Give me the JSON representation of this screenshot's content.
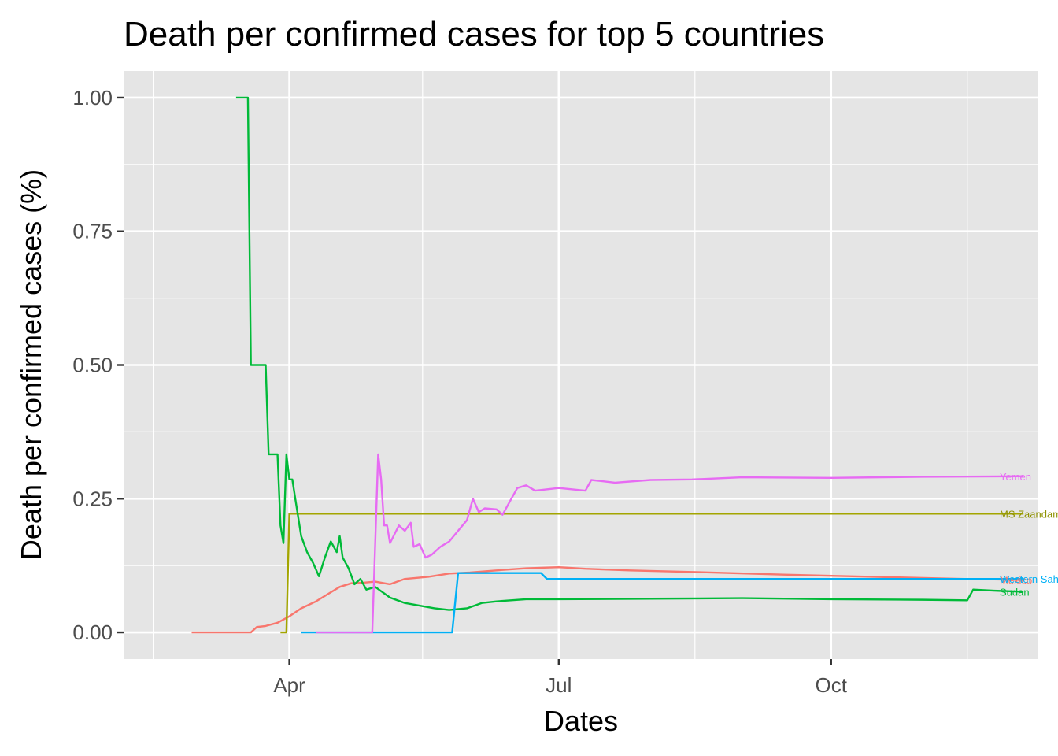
{
  "chart_data": {
    "type": "line",
    "title": "Death per confirmed cases for top 5 countries",
    "xlabel": "Dates",
    "ylabel": "Death per confirmed cases (%)",
    "xlim": [
      "2020-02-05",
      "2020-12-10"
    ],
    "ylim": [
      -0.05,
      1.05
    ],
    "x_ticks": [
      {
        "date": "2020-04-01",
        "label": "Apr"
      },
      {
        "date": "2020-07-01",
        "label": "Jul"
      },
      {
        "date": "2020-10-01",
        "label": "Oct"
      }
    ],
    "x_minor": [
      "2020-02-15",
      "2020-05-16",
      "2020-08-16",
      "2020-11-16"
    ],
    "y_ticks": [
      0,
      0.25,
      0.5,
      0.75,
      1
    ],
    "y_tick_labels": [
      "0.00",
      "0.25",
      "0.50",
      "0.75",
      "1.00"
    ],
    "grid": true,
    "background": "#e5e5e5",
    "series": [
      {
        "name": "Mexico",
        "color": "#F8766D",
        "label_color": "#F8766D",
        "points": [
          [
            "2020-02-28",
            0
          ],
          [
            "2020-03-19",
            0
          ],
          [
            "2020-03-21",
            0.01
          ],
          [
            "2020-03-24",
            0.012
          ],
          [
            "2020-03-28",
            0.018
          ],
          [
            "2020-04-01",
            0.03
          ],
          [
            "2020-04-05",
            0.045
          ],
          [
            "2020-04-10",
            0.058
          ],
          [
            "2020-04-15",
            0.075
          ],
          [
            "2020-04-18",
            0.085
          ],
          [
            "2020-04-22",
            0.092
          ],
          [
            "2020-04-26",
            0.093
          ],
          [
            "2020-04-30",
            0.095
          ],
          [
            "2020-05-05",
            0.09
          ],
          [
            "2020-05-10",
            0.1
          ],
          [
            "2020-05-18",
            0.104
          ],
          [
            "2020-05-25",
            0.11
          ],
          [
            "2020-06-01",
            0.112
          ],
          [
            "2020-06-10",
            0.116
          ],
          [
            "2020-06-20",
            0.12
          ],
          [
            "2020-07-01",
            0.122
          ],
          [
            "2020-07-10",
            0.119
          ],
          [
            "2020-07-25",
            0.116
          ],
          [
            "2020-08-15",
            0.113
          ],
          [
            "2020-09-15",
            0.108
          ],
          [
            "2020-10-15",
            0.104
          ],
          [
            "2020-11-15",
            0.1
          ],
          [
            "2020-12-05",
            0.098
          ]
        ]
      },
      {
        "name": "MS Zaandam",
        "color": "#A3A500",
        "label_color": "#8f9200",
        "points": [
          [
            "2020-03-29",
            0
          ],
          [
            "2020-03-31",
            0
          ],
          [
            "2020-04-01",
            0.222
          ],
          [
            "2020-12-05",
            0.222
          ]
        ]
      },
      {
        "name": "Sudan",
        "color": "#00BA38",
        "label_color": "#00BA38",
        "points": [
          [
            "2020-03-14",
            1
          ],
          [
            "2020-03-18",
            1
          ],
          [
            "2020-03-19",
            0.5
          ],
          [
            "2020-03-24",
            0.5
          ],
          [
            "2020-03-25",
            0.333
          ],
          [
            "2020-03-28",
            0.333
          ],
          [
            "2020-03-29",
            0.2
          ],
          [
            "2020-03-30",
            0.167
          ],
          [
            "2020-03-31",
            0.333
          ],
          [
            "2020-04-01",
            0.286
          ],
          [
            "2020-04-02",
            0.286
          ],
          [
            "2020-04-03",
            0.25
          ],
          [
            "2020-04-05",
            0.18
          ],
          [
            "2020-04-07",
            0.15
          ],
          [
            "2020-04-09",
            0.13
          ],
          [
            "2020-04-11",
            0.105
          ],
          [
            "2020-04-13",
            0.14
          ],
          [
            "2020-04-15",
            0.17
          ],
          [
            "2020-04-17",
            0.15
          ],
          [
            "2020-04-18",
            0.18
          ],
          [
            "2020-04-19",
            0.14
          ],
          [
            "2020-04-21",
            0.12
          ],
          [
            "2020-04-23",
            0.09
          ],
          [
            "2020-04-25",
            0.1
          ],
          [
            "2020-04-27",
            0.08
          ],
          [
            "2020-04-30",
            0.085
          ],
          [
            "2020-05-05",
            0.065
          ],
          [
            "2020-05-10",
            0.055
          ],
          [
            "2020-05-15",
            0.05
          ],
          [
            "2020-05-20",
            0.045
          ],
          [
            "2020-05-25",
            0.042
          ],
          [
            "2020-05-31",
            0.045
          ],
          [
            "2020-06-05",
            0.055
          ],
          [
            "2020-06-10",
            0.058
          ],
          [
            "2020-06-20",
            0.062
          ],
          [
            "2020-07-01",
            0.062
          ],
          [
            "2020-08-01",
            0.063
          ],
          [
            "2020-09-01",
            0.064
          ],
          [
            "2020-10-01",
            0.062
          ],
          [
            "2020-11-01",
            0.061
          ],
          [
            "2020-11-16",
            0.06
          ],
          [
            "2020-11-18",
            0.08
          ],
          [
            "2020-11-25",
            0.078
          ],
          [
            "2020-12-05",
            0.076
          ]
        ]
      },
      {
        "name": "Western Sahara",
        "color": "#00B0F6",
        "label_color": "#00B0F6",
        "points": [
          [
            "2020-04-05",
            0
          ],
          [
            "2020-05-26",
            0
          ],
          [
            "2020-05-28",
            0.111
          ],
          [
            "2020-06-25",
            0.111
          ],
          [
            "2020-06-27",
            0.1
          ],
          [
            "2020-12-05",
            0.1
          ]
        ]
      },
      {
        "name": "Yemen",
        "color": "#E76BF3",
        "label_color": "#E76BF3",
        "points": [
          [
            "2020-04-10",
            0
          ],
          [
            "2020-04-29",
            0
          ],
          [
            "2020-05-01",
            0.333
          ],
          [
            "2020-05-02",
            0.286
          ],
          [
            "2020-05-03",
            0.2
          ],
          [
            "2020-05-04",
            0.2
          ],
          [
            "2020-05-05",
            0.167
          ],
          [
            "2020-05-08",
            0.2
          ],
          [
            "2020-05-10",
            0.19
          ],
          [
            "2020-05-12",
            0.205
          ],
          [
            "2020-05-13",
            0.16
          ],
          [
            "2020-05-15",
            0.165
          ],
          [
            "2020-05-17",
            0.14
          ],
          [
            "2020-05-19",
            0.145
          ],
          [
            "2020-05-22",
            0.16
          ],
          [
            "2020-05-25",
            0.17
          ],
          [
            "2020-05-28",
            0.19
          ],
          [
            "2020-05-31",
            0.21
          ],
          [
            "2020-06-02",
            0.25
          ],
          [
            "2020-06-04",
            0.225
          ],
          [
            "2020-06-06",
            0.232
          ],
          [
            "2020-06-10",
            0.23
          ],
          [
            "2020-06-12",
            0.22
          ],
          [
            "2020-06-14",
            0.24
          ],
          [
            "2020-06-17",
            0.27
          ],
          [
            "2020-06-20",
            0.275
          ],
          [
            "2020-06-23",
            0.265
          ],
          [
            "2020-07-01",
            0.27
          ],
          [
            "2020-07-10",
            0.265
          ],
          [
            "2020-07-12",
            0.285
          ],
          [
            "2020-07-20",
            0.28
          ],
          [
            "2020-08-01",
            0.285
          ],
          [
            "2020-08-15",
            0.286
          ],
          [
            "2020-09-01",
            0.29
          ],
          [
            "2020-10-01",
            0.289
          ],
          [
            "2020-11-01",
            0.291
          ],
          [
            "2020-12-05",
            0.292
          ]
        ]
      }
    ],
    "end_labels": [
      {
        "series": "Yemen",
        "text": "Yemen",
        "y": 0.292
      },
      {
        "series": "MS Zaandam",
        "text": "MS Zaandam",
        "y": 0.222
      },
      {
        "series": "Mexico",
        "text": "Mexico",
        "y": 0.098
      },
      {
        "series": "Western Sahara",
        "text": "Western Sahara",
        "y": 0.1
      },
      {
        "series": "Sudan",
        "text": "Sudan",
        "y": 0.076
      }
    ]
  }
}
